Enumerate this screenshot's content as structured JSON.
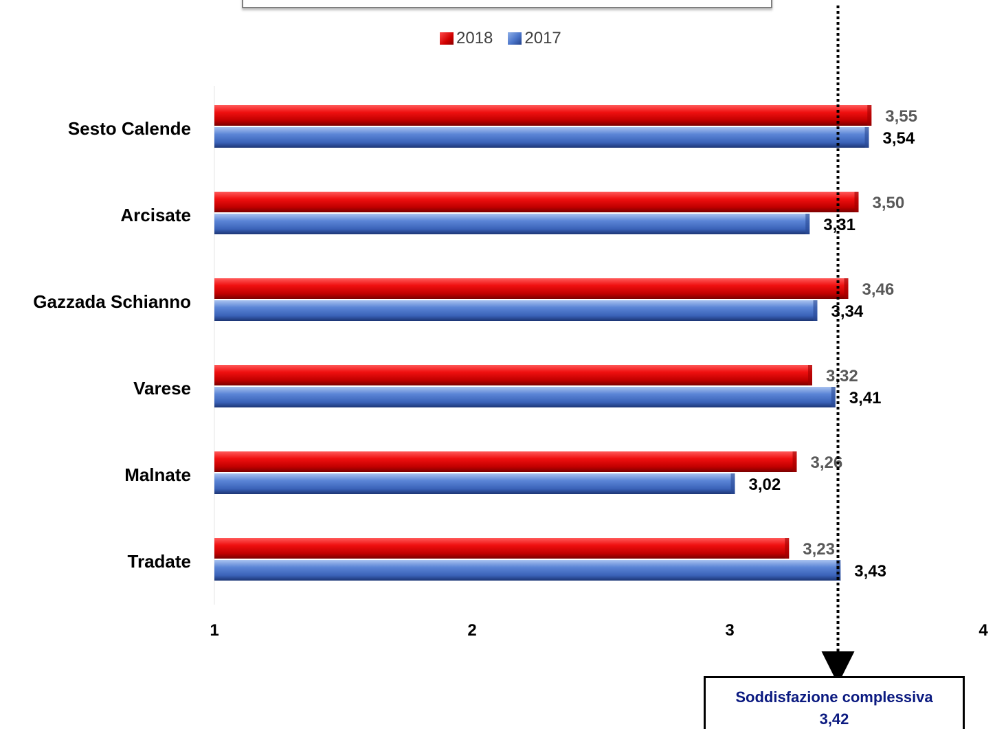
{
  "colors": {
    "series_2018": "#e00000",
    "series_2017": "#4a74c9",
    "total_text": "#0b1a80"
  },
  "legend": {
    "items": [
      {
        "label": "2018",
        "color": "#e00000"
      },
      {
        "label": "2017",
        "color": "#4a74c9"
      }
    ]
  },
  "total": {
    "label": "Soddisfazione complessiva",
    "value_text": "3,42",
    "value": 3.42
  },
  "chart_data": {
    "type": "bar",
    "orientation": "horizontal",
    "categories": [
      "Sesto Calende",
      "Arcisate",
      "Gazzada Schianno",
      "Varese",
      "Malnate",
      "Tradate"
    ],
    "series": [
      {
        "name": "2018",
        "values": [
          3.55,
          3.5,
          3.46,
          3.32,
          3.26,
          3.23
        ],
        "labels": [
          "3,55",
          "3,50",
          "3,46",
          "3,32",
          "3,26",
          "3,23"
        ]
      },
      {
        "name": "2017",
        "values": [
          3.54,
          3.31,
          3.34,
          3.41,
          3.02,
          3.43
        ],
        "labels": [
          "3,54",
          "3,31",
          "3,34",
          "3,41",
          "3,02",
          "3,43"
        ]
      }
    ],
    "xlim": [
      1,
      4
    ],
    "xticks": [
      "1",
      "2",
      "3",
      "4"
    ],
    "reference_line": 3.42,
    "legend_position": "top",
    "grid": false
  }
}
